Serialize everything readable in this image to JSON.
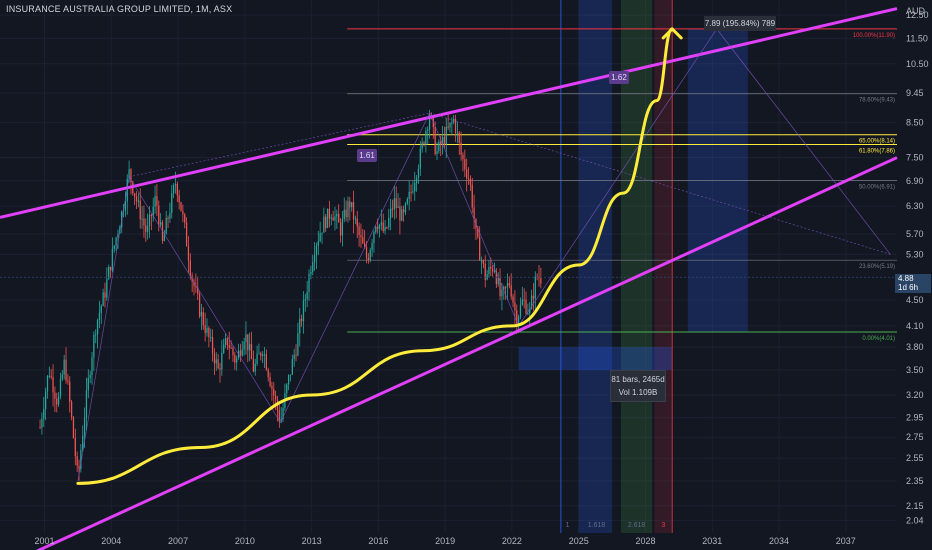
{
  "header": {
    "title": "INSURANCE AUSTRALIA GROUP LIMITED, 1M, ASX",
    "currency": "AUD"
  },
  "current": {
    "price": "4.88",
    "countdown": "1d 6h"
  },
  "annotations": {
    "pct_box": "7.89 (195.84%) 789",
    "measure_bars": "81 bars, 2465d",
    "measure_vol": "Vol 1.109B",
    "badge_1": "1.61",
    "badge_2": "1.62",
    "fib_ext_labels": [
      "1",
      "1.618",
      "2.618",
      "3"
    ]
  },
  "fib_levels": [
    {
      "label": "100.00%(11.90)",
      "price": 11.9,
      "color": "#f23645"
    },
    {
      "label": "78.60%(9.43)",
      "price": 9.43,
      "color": "#787b86"
    },
    {
      "label": "65.00%(8.14)",
      "price": 8.14,
      "color": "#ffeb3b"
    },
    {
      "label": "61.80%(7.86)",
      "price": 7.86,
      "color": "#ffeb3b"
    },
    {
      "label": "50.00%(6.91)",
      "price": 6.91,
      "color": "#787b86"
    },
    {
      "label": "23.60%(5.19)",
      "price": 5.19,
      "color": "#787b86"
    },
    {
      "label": "0.00%(4.01)",
      "price": 4.01,
      "color": "#4caf50"
    }
  ],
  "colors": {
    "background": "#131722",
    "up": "#26a69a",
    "down": "#ef5350",
    "channel": "#e040fb",
    "curve": "#ffeb3b"
  },
  "chart_data": {
    "type": "candlestick",
    "title": "INSURANCE AUSTRALIA GROUP LIMITED, 1M, ASX",
    "y_scale": "log",
    "ylim": [
      1.95,
      13.2
    ],
    "xlim": [
      1999.0,
      2039.3
    ],
    "y_ticks": [
      12.5,
      11.5,
      10.5,
      9.45,
      8.5,
      7.5,
      6.9,
      6.3,
      5.7,
      5.3,
      4.5,
      4.1,
      3.8,
      3.5,
      3.2,
      2.95,
      2.75,
      2.55,
      2.35,
      2.15,
      2.04
    ],
    "x_ticks": [
      "2001",
      "2004",
      "2007",
      "2010",
      "2013",
      "2016",
      "2019",
      "2022",
      "2025",
      "2028",
      "2031",
      "2034",
      "2037"
    ],
    "x_tick_values": [
      2001,
      2004,
      2007,
      2010,
      2013,
      2016,
      2019,
      2022,
      2025,
      2028,
      2031,
      2034,
      2037
    ],
    "price_path": [
      [
        2000.8,
        2.85
      ],
      [
        2001.2,
        3.5
      ],
      [
        2001.6,
        3.1
      ],
      [
        2001.9,
        3.6
      ],
      [
        2002.3,
        2.75
      ],
      [
        2002.5,
        2.35
      ],
      [
        2002.9,
        3.2
      ],
      [
        2003.3,
        4.1
      ],
      [
        2003.7,
        4.6
      ],
      [
        2004.1,
        5.4
      ],
      [
        2004.5,
        6.2
      ],
      [
        2004.8,
        7.1
      ],
      [
        2005.2,
        6.3
      ],
      [
        2005.6,
        5.7
      ],
      [
        2006.0,
        6.5
      ],
      [
        2006.3,
        5.5
      ],
      [
        2006.7,
        6.4
      ],
      [
        2006.9,
        6.9
      ],
      [
        2007.3,
        5.8
      ],
      [
        2007.6,
        4.9
      ],
      [
        2008.0,
        4.3
      ],
      [
        2008.4,
        3.9
      ],
      [
        2008.8,
        3.5
      ],
      [
        2009.2,
        3.9
      ],
      [
        2009.6,
        3.6
      ],
      [
        2010.0,
        4.0
      ],
      [
        2010.4,
        3.5
      ],
      [
        2010.8,
        3.8
      ],
      [
        2011.2,
        3.3
      ],
      [
        2011.6,
        2.9
      ],
      [
        2011.9,
        3.3
      ],
      [
        2012.3,
        3.8
      ],
      [
        2012.7,
        4.5
      ],
      [
        2013.1,
        5.4
      ],
      [
        2013.5,
        5.9
      ],
      [
        2013.9,
        6.2
      ],
      [
        2014.3,
        5.8
      ],
      [
        2014.7,
        6.4
      ],
      [
        2015.1,
        5.7
      ],
      [
        2015.5,
        5.2
      ],
      [
        2015.9,
        6.0
      ],
      [
        2016.3,
        5.7
      ],
      [
        2016.7,
        6.4
      ],
      [
        2017.1,
        6.0
      ],
      [
        2017.5,
        6.7
      ],
      [
        2017.9,
        7.6
      ],
      [
        2018.3,
        8.8
      ],
      [
        2018.6,
        7.6
      ],
      [
        2019.0,
        8.1
      ],
      [
        2019.4,
        8.6
      ],
      [
        2019.7,
        7.6
      ],
      [
        2020.1,
        6.9
      ],
      [
        2020.4,
        5.6
      ],
      [
        2020.8,
        4.9
      ],
      [
        2021.2,
        5.1
      ],
      [
        2021.5,
        4.5
      ],
      [
        2021.9,
        4.8
      ],
      [
        2022.2,
        4.2
      ],
      [
        2022.5,
        4.5
      ],
      [
        2022.8,
        4.3
      ],
      [
        2023.1,
        4.9
      ],
      [
        2023.3,
        4.88
      ]
    ],
    "fib_retracement": {
      "high": 11.9,
      "low": 4.01
    },
    "curve": [
      [
        2002.5,
        2.33
      ],
      [
        2008.0,
        2.65
      ],
      [
        2013.0,
        3.2
      ],
      [
        2018.0,
        3.75
      ],
      [
        2022.0,
        4.1
      ],
      [
        2025.0,
        5.1
      ],
      [
        2027.0,
        6.6
      ],
      [
        2028.5,
        9.2
      ],
      [
        2029.2,
        11.9
      ]
    ],
    "channel_upper": [
      [
        1999.0,
        6.05
      ],
      [
        2039.3,
        12.8
      ]
    ],
    "channel_lower": [
      [
        1999.0,
        1.72
      ],
      [
        2039.3,
        7.5
      ]
    ]
  }
}
